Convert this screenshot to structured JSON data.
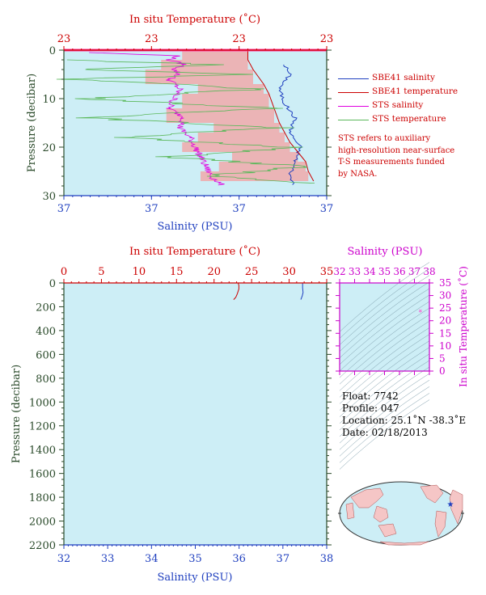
{
  "colors": {
    "plot_bg": "#cdeef6",
    "sbe_salinity": "#1f3fbf",
    "sbe_temperature": "#cc0000",
    "sts_salinity": "#e000e0",
    "sts_temperature": "#5ab85a",
    "overlap_fill": "#f4a0a0",
    "temp_axis": "#cc0000",
    "sal_axis": "#1f3fbf",
    "pres_axis": "#2a4a2a",
    "ts_axis": "#cc00cc"
  },
  "top_chart": {
    "title": "In situ Temperature (˚C)",
    "temp_ticks": [
      "23",
      "23",
      "23",
      "23"
    ],
    "sal_ticks": [
      "37",
      "37",
      "37",
      "37"
    ],
    "xlabel": "Salinity (PSU)",
    "ylabel": "Pressure (decibar)",
    "y_ticks": [
      "0",
      "10",
      "20",
      "30"
    ]
  },
  "legend": {
    "items": [
      {
        "label": "SBE41 salinity",
        "color": "#1f3fbf"
      },
      {
        "label": "SBE41 temperature",
        "color": "#cc0000"
      },
      {
        "label": "STS salinity",
        "color": "#e000e0"
      },
      {
        "label": "STS temperature",
        "color": "#5ab85a"
      }
    ]
  },
  "note_lines": [
    "STS refers to auxiliary",
    "high-resolution near-surface",
    "T-S measurements funded",
    "by NASA."
  ],
  "bottom_chart": {
    "title": "In situ Temperature (˚C)",
    "temp_ticks": [
      "0",
      "5",
      "10",
      "15",
      "20",
      "25",
      "30",
      "35"
    ],
    "sal_ticks": [
      "32",
      "33",
      "34",
      "35",
      "36",
      "37",
      "38"
    ],
    "xlabel": "Salinity (PSU)",
    "ylabel": "Pressure (decibar)",
    "y_ticks": [
      "0",
      "200",
      "400",
      "600",
      "800",
      "1000",
      "1200",
      "1400",
      "1600",
      "1800",
      "2000",
      "2200"
    ]
  },
  "ts_diagram": {
    "title": "Salinity (PSU)",
    "sal_ticks": [
      "32",
      "33",
      "34",
      "35",
      "36",
      "37",
      "38"
    ],
    "temp_ticks": [
      "0",
      "5",
      "10",
      "15",
      "20",
      "25",
      "30",
      "35"
    ],
    "ylabel": "In situ Temperature (˚C)",
    "point": {
      "salinity": 37.4,
      "temperature": 23.2
    }
  },
  "info": {
    "float": "Float:  7742",
    "profile": "Profile:  047",
    "location": "Location:  25.1˚N  -38.3˚E",
    "date": "Date:  02/18/2013"
  },
  "chart_data": [
    {
      "type": "line",
      "name": "top",
      "ylim": [
        0,
        30
      ],
      "y_reversed": true,
      "series": [
        {
          "name": "SBE41 salinity",
          "axis": "salinity",
          "points": [
            [
              37.42,
              3
            ],
            [
              37.43,
              5
            ],
            [
              37.41,
              8
            ],
            [
              37.42,
              11
            ],
            [
              37.44,
              14
            ],
            [
              37.43,
              17
            ],
            [
              37.45,
              20
            ],
            [
              37.44,
              23
            ],
            [
              37.43,
              26
            ],
            [
              37.44,
              28
            ]
          ]
        },
        {
          "name": "SBE41 temperature",
          "axis": "temperature",
          "points": [
            [
              0.7,
              0.2
            ],
            [
              0.7,
              2
            ],
            [
              0.72,
              4
            ],
            [
              0.76,
              7
            ],
            [
              0.78,
              9
            ],
            [
              0.8,
              12
            ],
            [
              0.82,
              15
            ],
            [
              0.84,
              17
            ],
            [
              0.86,
              19
            ],
            [
              0.89,
              21
            ],
            [
              0.92,
              23
            ],
            [
              0.93,
              25
            ],
            [
              0.95,
              27
            ]
          ]
        },
        {
          "name": "STS salinity",
          "axis": "salinity",
          "points": [
            [
              37.05,
              0.5
            ],
            [
              37.22,
              1.2
            ],
            [
              37.2,
              2
            ],
            [
              37.23,
              3
            ],
            [
              37.21,
              4
            ],
            [
              37.22,
              5
            ],
            [
              37.2,
              6
            ],
            [
              37.22,
              8
            ],
            [
              37.21,
              10
            ],
            [
              37.2,
              12
            ],
            [
              37.23,
              14
            ],
            [
              37.22,
              16
            ],
            [
              37.24,
              18
            ],
            [
              37.25,
              20
            ],
            [
              37.26,
              22
            ],
            [
              37.27,
              24
            ],
            [
              37.28,
              26
            ],
            [
              37.3,
              27.8
            ]
          ]
        },
        {
          "name": "STS temperature",
          "axis": "temperature",
          "points": [
            [
              0.0,
              2
            ],
            [
              0.6,
              3
            ],
            [
              0.05,
              4
            ],
            [
              0.72,
              5
            ],
            [
              0.02,
              6
            ],
            [
              0.75,
              8
            ],
            [
              0.1,
              10
            ],
            [
              0.78,
              12
            ],
            [
              0.1,
              14
            ],
            [
              0.82,
              16
            ],
            [
              0.2,
              18
            ],
            [
              0.88,
              20
            ],
            [
              0.4,
              22
            ],
            [
              0.9,
              24
            ],
            [
              0.55,
              26
            ],
            [
              0.95,
              27.5
            ]
          ]
        }
      ]
    },
    {
      "type": "line",
      "name": "bottom",
      "ylim": [
        0,
        2200
      ],
      "y_reversed": true,
      "xlim_salinity": [
        32,
        38
      ],
      "xlim_temperature": [
        0,
        35
      ],
      "series": [
        {
          "name": "SBE41 temperature",
          "axis": "temperature",
          "points": [
            [
              23.2,
              0
            ],
            [
              23.3,
              20
            ],
            [
              23.3,
              50
            ],
            [
              23.1,
              90
            ],
            [
              22.9,
              120
            ],
            [
              22.6,
              140
            ]
          ]
        },
        {
          "name": "SBE41 salinity",
          "axis": "salinity",
          "points": [
            [
              37.45,
              0
            ],
            [
              37.45,
              40
            ],
            [
              37.46,
              80
            ],
            [
              37.44,
              110
            ],
            [
              37.42,
              130
            ],
            [
              37.41,
              140
            ]
          ]
        }
      ]
    }
  ]
}
